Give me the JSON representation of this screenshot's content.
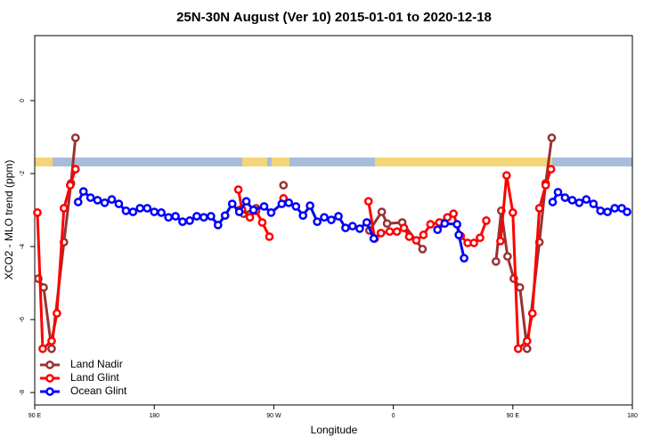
{
  "chart_data": {
    "type": "line",
    "title": "25N-30N August (Ver 10)   2015-01-01 to 2020-12-18",
    "x_label": "Longitude",
    "y_label": "XCO2 - MLO trend (ppm)",
    "xlim": [
      90,
      540
    ],
    "ylim": [
      -8.34,
      1.78
    ],
    "xticks": [
      {
        "value": 90,
        "label": "90 E"
      },
      180,
      {
        "value": 270,
        "label": "90 W"
      },
      {
        "value": 360,
        "label": "0"
      },
      {
        "value": 450,
        "label": "90 E"
      },
      {
        "value": 540,
        "label": "180"
      }
    ],
    "yticks": [
      -8,
      -6,
      -4,
      -2,
      0
    ],
    "legend": "bottom-left",
    "series": [
      {
        "name": "Land Nadir",
        "color": "#993333",
        "x": [
          92.7,
          96.7,
          102.7,
          112,
          117.3,
          120.7,
          null,
          244,
          247.3,
          256.7,
          null,
          277.3,
          null,
          342,
          351.3,
          355.3,
          366.7,
          382,
          null,
          437.3,
          441.3,
          446,
          450.7,
          455.3,
          460.7,
          470,
          474.7,
          479.3
        ],
        "values": [
          -4.88,
          -5.12,
          -6.8,
          -3.88,
          -2.27,
          -1.02,
          null,
          -3.0,
          -3.1,
          -2.95,
          null,
          -2.32,
          null,
          -3.56,
          -3.05,
          -3.37,
          -3.34,
          -4.07,
          null,
          -4.41,
          -3.02,
          -4.27,
          -4.88,
          -5.12,
          -6.8,
          -3.88,
          -2.27,
          -1.02
        ]
      },
      {
        "name": "Land Glint",
        "color": "#ff0000",
        "x": [
          92,
          96,
          102.7,
          106.7,
          112,
          116.7,
          120.7,
          null,
          243.3,
          246,
          252,
          256.7,
          261.3,
          266.7,
          null,
          277.3,
          null,
          341.3,
          346,
          350.7,
          357.3,
          362.7,
          368,
          372,
          377.3,
          382.7,
          388,
          394.7,
          400.7,
          405.3,
          410.7,
          416,
          420.7,
          425.3,
          430,
          null,
          440.7,
          445.3,
          450,
          454,
          460.7,
          464.7,
          470,
          474.7,
          478.7
        ],
        "values": [
          -3.07,
          -6.8,
          -6.59,
          -5.83,
          -2.95,
          -2.32,
          -1.88,
          null,
          -2.44,
          -2.98,
          -3.2,
          -3.02,
          -3.34,
          -3.73,
          null,
          -2.68,
          null,
          -2.76,
          -3.78,
          -3.63,
          -3.59,
          -3.59,
          -3.49,
          -3.73,
          -3.83,
          -3.68,
          -3.39,
          -3.34,
          -3.2,
          -3.1,
          -3.71,
          -3.9,
          -3.9,
          -3.76,
          -3.29,
          null,
          -3.85,
          -2.05,
          -3.07,
          -6.8,
          -6.59,
          -5.83,
          -2.95,
          -2.32,
          -1.88
        ]
      },
      {
        "name": "Ocean Glint",
        "color": "#0000ff",
        "x": [
          122.7,
          126.7,
          132,
          137.3,
          142.7,
          148,
          153.3,
          158.7,
          164,
          169.3,
          174.7,
          180,
          185.3,
          190.7,
          196,
          201.3,
          206.7,
          212,
          217.3,
          222.7,
          228,
          233.3,
          238.7,
          244,
          249.3,
          254.7,
          262.7,
          268,
          276,
          281.3,
          286.7,
          292,
          297.3,
          302.7,
          308,
          313.3,
          318.7,
          324,
          329.3,
          334.7,
          340,
          345.3,
          null,
          393.3,
          398.7,
          408,
          409.3,
          413.3,
          null,
          480,
          484,
          489.3,
          494.7,
          500,
          505.3,
          510.7,
          516,
          521.3,
          526.7,
          532,
          536
        ],
        "values": [
          -2.78,
          -2.49,
          -2.66,
          -2.73,
          -2.8,
          -2.71,
          -2.83,
          -3.02,
          -3.05,
          -2.95,
          -2.95,
          -3.05,
          -3.07,
          -3.2,
          -3.17,
          -3.32,
          -3.29,
          -3.17,
          -3.2,
          -3.17,
          -3.41,
          -3.15,
          -2.83,
          -3.05,
          -2.76,
          -3.0,
          -2.9,
          -3.07,
          -2.83,
          -2.8,
          -2.9,
          -3.15,
          -2.88,
          -3.32,
          -3.2,
          -3.27,
          -3.17,
          -3.49,
          -3.44,
          -3.51,
          -3.34,
          -3.78,
          null,
          -3.54,
          -3.37,
          -3.39,
          -3.68,
          -4.32,
          null,
          -2.78,
          -2.51,
          -2.66,
          -2.73,
          -2.8,
          -2.71,
          -2.83,
          -3.02,
          -3.05,
          -2.95,
          -2.95,
          -3.05
        ]
      }
    ]
  }
}
